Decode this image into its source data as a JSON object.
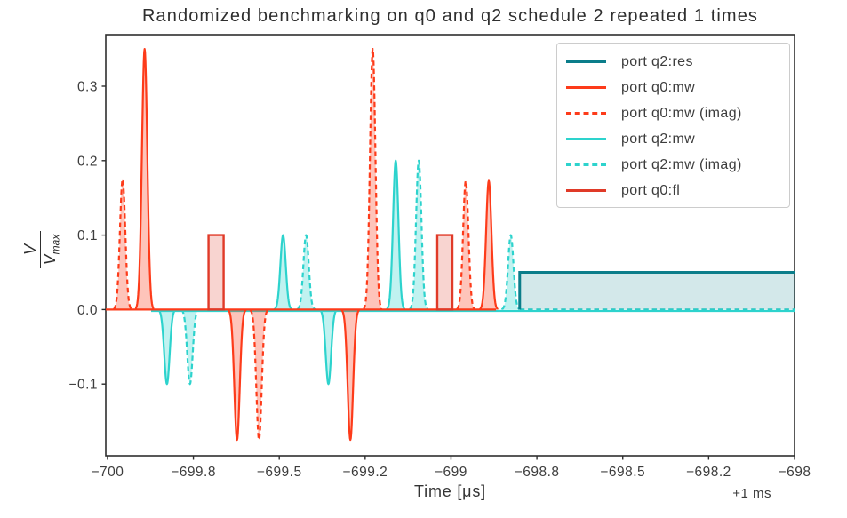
{
  "title": "Randomized benchmarking on q0 and q2 schedule 2 repeated 1 times",
  "axes": {
    "xlabel": "Time [μs]",
    "x_offset_label": "+1 ms",
    "ylabel": {
      "numerator": "V",
      "denominator_base": "V",
      "denominator_sub": "max"
    },
    "x_ticks": [
      {
        "value": -700.0,
        "label": "−700"
      },
      {
        "value": -699.75,
        "label": "−699.8"
      },
      {
        "value": -699.5,
        "label": "−699.5"
      },
      {
        "value": -699.25,
        "label": "−699.2"
      },
      {
        "value": -699.0,
        "label": "−699"
      },
      {
        "value": -698.75,
        "label": "−698.8"
      },
      {
        "value": -698.5,
        "label": "−698.5"
      },
      {
        "value": -698.25,
        "label": "−698.2"
      },
      {
        "value": -698.0,
        "label": "−698"
      }
    ],
    "y_ticks": [
      {
        "value": 0.3,
        "label": "0.3"
      },
      {
        "value": 0.2,
        "label": "0.2"
      },
      {
        "value": 0.1,
        "label": "0.1"
      },
      {
        "value": 0.0,
        "label": "0.0"
      },
      {
        "value": -0.1,
        "label": "−0.1"
      }
    ]
  },
  "legend": {
    "items": [
      {
        "label": "port q2:res",
        "port": "q2:res",
        "dashed": false
      },
      {
        "label": "port q0:mw",
        "port": "q0:mw",
        "dashed": false
      },
      {
        "label": "port q0:mw (imag)",
        "port": "q0:mw",
        "dashed": true
      },
      {
        "label": "port q2:mw",
        "port": "q2:mw",
        "dashed": false
      },
      {
        "label": "port q2:mw (imag)",
        "port": "q2:mw",
        "dashed": true
      },
      {
        "label": "port q0:fl",
        "port": "q0:fl",
        "dashed": false
      }
    ]
  },
  "colors": {
    "q2:res": "#0b7d8a",
    "q0:mw": "#fd3b1a",
    "q2:mw": "#2dd3cd",
    "q0:fl": "#e03a28",
    "frame": "#2e2e2e",
    "tick_text": "#3d3d3d"
  },
  "chart_data": {
    "type": "line",
    "subtype": "pulse-schedule",
    "title": "Randomized benchmarking on q0 and q2 schedule 2 repeated 1 times",
    "xlabel": "Time [μs]",
    "x_offset": "+1 ms",
    "ylabel": "V/Vmax",
    "xlim": [
      -700.005,
      -698.0
    ],
    "ylim": [
      -0.1964,
      0.3692
    ],
    "grid": false,
    "legend_position": "upper right",
    "gaussian_sigma_us": 0.0078,
    "baselines": [
      {
        "port": "q2:mw",
        "from": -699.873,
        "to": -698.0,
        "dashed": false
      },
      {
        "port": "q2:mw",
        "from": -698.8,
        "to": -698.0,
        "dashed": true
      },
      {
        "port": "q0:mw",
        "from": -700.005,
        "to": -698.869,
        "dashed": false
      }
    ],
    "pulses": [
      {
        "port": "q0:mw",
        "component": "imag",
        "shape": "gaussian",
        "center": -699.956,
        "amp": 0.175
      },
      {
        "port": "q0:mw",
        "component": "real",
        "shape": "gaussian",
        "center": -699.892,
        "amp": 0.35
      },
      {
        "port": "q2:mw",
        "component": "real",
        "shape": "gaussian",
        "center": -699.827,
        "amp": -0.1
      },
      {
        "port": "q2:mw",
        "component": "imag",
        "shape": "gaussian",
        "center": -699.76,
        "amp": -0.1
      },
      {
        "port": "q0:fl",
        "component": "real",
        "shape": "square",
        "t_start": -699.706,
        "t_end": -699.662,
        "amp": 0.1
      },
      {
        "port": "q0:mw",
        "component": "real",
        "shape": "gaussian",
        "center": -699.623,
        "amp": -0.175
      },
      {
        "port": "q0:mw",
        "component": "imag",
        "shape": "gaussian",
        "center": -699.559,
        "amp": -0.175
      },
      {
        "port": "q2:mw",
        "component": "real",
        "shape": "gaussian",
        "center": -699.489,
        "amp": 0.1
      },
      {
        "port": "q2:mw",
        "component": "imag",
        "shape": "gaussian",
        "center": -699.422,
        "amp": 0.1
      },
      {
        "port": "q2:mw",
        "component": "real",
        "shape": "gaussian",
        "center": -699.357,
        "amp": -0.1
      },
      {
        "port": "q0:mw",
        "component": "real",
        "shape": "gaussian",
        "center": -699.293,
        "amp": -0.175
      },
      {
        "port": "q0:mw",
        "component": "imag",
        "shape": "gaussian",
        "center": -699.228,
        "amp": 0.35
      },
      {
        "port": "q2:mw",
        "component": "real",
        "shape": "gaussian",
        "center": -699.161,
        "amp": 0.2
      },
      {
        "port": "q2:mw",
        "component": "imag",
        "shape": "gaussian",
        "center": -699.094,
        "amp": 0.2
      },
      {
        "port": "q0:fl",
        "component": "real",
        "shape": "square",
        "t_start": -699.04,
        "t_end": -698.996,
        "amp": 0.1
      },
      {
        "port": "q0:mw",
        "component": "imag",
        "shape": "gaussian",
        "center": -698.957,
        "amp": 0.173
      },
      {
        "port": "q0:mw",
        "component": "real",
        "shape": "gaussian",
        "center": -698.89,
        "amp": 0.173
      },
      {
        "port": "q2:mw",
        "component": "imag",
        "shape": "gaussian",
        "center": -698.826,
        "amp": 0.1
      },
      {
        "port": "q2:res",
        "component": "real",
        "shape": "square_open",
        "t_start": -698.8,
        "t_end": -698.0,
        "amp": 0.05
      }
    ]
  }
}
